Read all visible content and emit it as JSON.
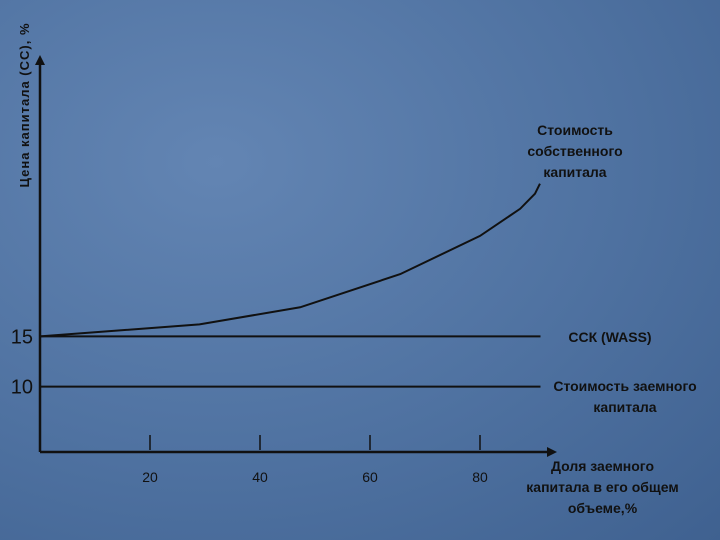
{
  "chart_data": {
    "type": "line",
    "y_label": "Цена капитала (СС), %",
    "x_label": "Доля заемного капитала в его общем объеме,%",
    "xlim": [
      0,
      94
    ],
    "xticks": [
      20,
      40,
      60,
      80
    ],
    "ylim": [
      3.5,
      43
    ],
    "yticks": [
      10,
      15
    ],
    "series": [
      {
        "name": "Стоимость собственного капитала",
        "color": "#111111",
        "x": [
          0,
          29,
          47.3,
          65.5,
          80,
          87.3,
          90,
          90.9
        ],
        "values": [
          15,
          16.2,
          17.9,
          21.2,
          25,
          27.7,
          29.2,
          30.2
        ]
      },
      {
        "name": "ССК (WASS)",
        "color": "#111111",
        "x": [
          0,
          91
        ],
        "values": [
          15,
          15
        ]
      },
      {
        "name": "Стоимость заемного капитала",
        "color": "#111111",
        "x": [
          0,
          91
        ],
        "values": [
          10,
          10
        ]
      }
    ]
  }
}
